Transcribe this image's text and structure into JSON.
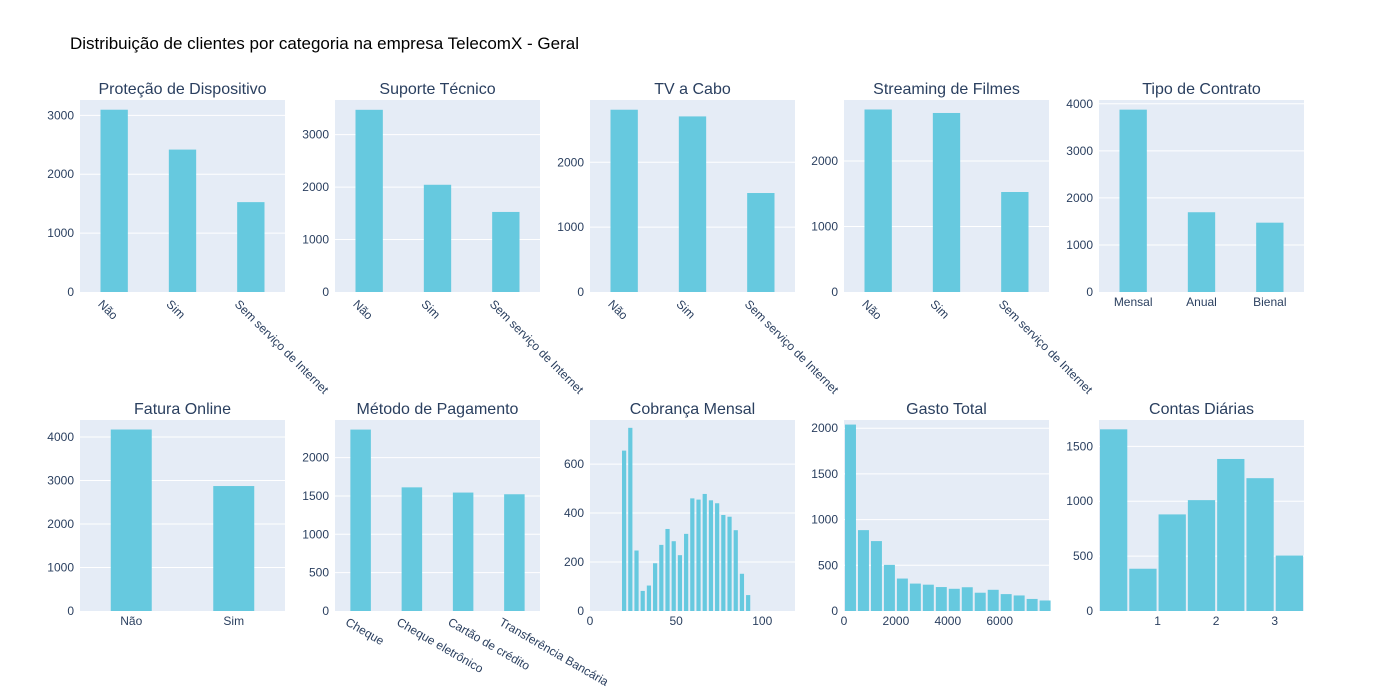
{
  "figure": {
    "title": "Distribuição de clientes por categoria na empresa TelecomX - Geral"
  },
  "colors": {
    "bar": "#66c9df",
    "plot_bg": "#e5ecf6",
    "grid": "#ffffff",
    "text": "#2a3f5f"
  },
  "chart_data": [
    {
      "type": "bar",
      "title": "Proteção de Dispositivo",
      "categories": [
        "Não",
        "Sim",
        "Sem serviço de Internet"
      ],
      "values": [
        3095,
        2418,
        1526
      ],
      "ylim": [
        0,
        3260
      ],
      "yticks": [
        0,
        1000,
        2000,
        3000
      ],
      "grid": true,
      "tick_rotation": 45
    },
    {
      "type": "bar",
      "title": "Suporte Técnico",
      "categories": [
        "Não",
        "Sim",
        "Sem serviço de Internet"
      ],
      "values": [
        3473,
        2044,
        1526
      ],
      "ylim": [
        0,
        3660
      ],
      "yticks": [
        0,
        1000,
        2000,
        3000
      ],
      "grid": true,
      "tick_rotation": 45
    },
    {
      "type": "bar",
      "title": "TV a Cabo",
      "categories": [
        "Não",
        "Sim",
        "Sem serviço de Internet"
      ],
      "values": [
        2810,
        2707,
        1526
      ],
      "ylim": [
        0,
        2960
      ],
      "yticks": [
        0,
        1000,
        2000
      ],
      "grid": true,
      "tick_rotation": 45
    },
    {
      "type": "bar",
      "title": "Streaming de Filmes",
      "categories": [
        "Não",
        "Sim",
        "Sem serviço de Internet"
      ],
      "values": [
        2785,
        2732,
        1526
      ],
      "ylim": [
        0,
        2930
      ],
      "yticks": [
        0,
        1000,
        2000
      ],
      "grid": true,
      "tick_rotation": 45
    },
    {
      "type": "bar",
      "title": "Tipo de Contrato",
      "categories": [
        "Mensal",
        "Anual",
        "Bienal"
      ],
      "values": [
        3875,
        1695,
        1473
      ],
      "ylim": [
        0,
        4080
      ],
      "yticks": [
        0,
        1000,
        2000,
        3000,
        4000
      ],
      "grid": true,
      "tick_rotation": 0
    },
    {
      "type": "bar",
      "title": "Fatura Online",
      "categories": [
        "Não",
        "Sim"
      ],
      "values": [
        4171,
        2872
      ],
      "ylim": [
        0,
        4390
      ],
      "yticks": [
        0,
        1000,
        2000,
        3000,
        4000
      ],
      "grid": true,
      "tick_rotation": 0
    },
    {
      "type": "bar",
      "title": "Método de Pagamento",
      "categories": [
        "Cheque",
        "Cheque eletrônico",
        "Cartão de crédito",
        "Transferência Bancária"
      ],
      "values": [
        2365,
        1612,
        1544,
        1522
      ],
      "ylim": [
        0,
        2490
      ],
      "yticks": [
        0,
        500,
        1000,
        1500,
        2000
      ],
      "grid": true,
      "tick_rotation": 30
    },
    {
      "type": "histogram",
      "title": "Cobrança Mensal",
      "x": [
        17.5,
        20.5,
        23.5,
        29.5,
        32.5,
        35.5,
        38.5,
        41.5,
        44.5,
        47.5,
        50.5,
        53.5,
        56.5,
        59.5,
        62.5,
        65.5,
        68.5,
        71.5,
        74.5,
        77.5,
        80.5,
        83.5,
        86.5,
        89.5,
        92.5,
        95.5,
        98.5,
        101.5,
        104.5,
        107.5,
        110.5,
        113.5,
        116.5
      ],
      "values": [
        0,
        0,
        0,
        0,
        0,
        0,
        0,
        0,
        0,
        0,
        0,
        0,
        0,
        0,
        0,
        0,
        0,
        0,
        0,
        0,
        0,
        0,
        0,
        0,
        0,
        0,
        0,
        0,
        0,
        0,
        0,
        0,
        0
      ],
      "bins": {
        "start": 18,
        "size": 3.6,
        "counts": [
          655,
          748,
          247,
          82,
          104,
          195,
          270,
          335,
          285,
          228,
          315,
          460,
          455,
          478,
          452,
          440,
          392,
          385,
          330,
          152,
          65
        ]
      },
      "xlim": [
        0,
        119
      ],
      "ylim": [
        0,
        780
      ],
      "xticks": [
        0,
        50,
        100
      ],
      "yticks": [
        0,
        200,
        400,
        600
      ],
      "grid": true
    },
    {
      "type": "histogram",
      "title": "Gasto Total",
      "bins": {
        "start": 0,
        "size": 500,
        "counts": [
          2040,
          885,
          765,
          505,
          355,
          300,
          288,
          262,
          243,
          260,
          200,
          232,
          185,
          170,
          132,
          115
        ]
      },
      "xlim": [
        0,
        7900
      ],
      "ylim": [
        0,
        2090
      ],
      "xticks": [
        0,
        2000,
        4000,
        6000
      ],
      "yticks": [
        0,
        500,
        1000,
        1500,
        2000
      ],
      "grid": true
    },
    {
      "type": "histogram",
      "title": "Contas Diárias",
      "bins": {
        "start": 0,
        "size": 0.5,
        "counts": [
          1655,
          385,
          880,
          1010,
          1385,
          1210,
          505
        ]
      },
      "xlim": [
        0,
        3.5
      ],
      "ylim": [
        0,
        1740
      ],
      "xticks": [
        1,
        2,
        3
      ],
      "yticks": [
        0,
        500,
        1000,
        1500
      ],
      "grid": true
    }
  ]
}
